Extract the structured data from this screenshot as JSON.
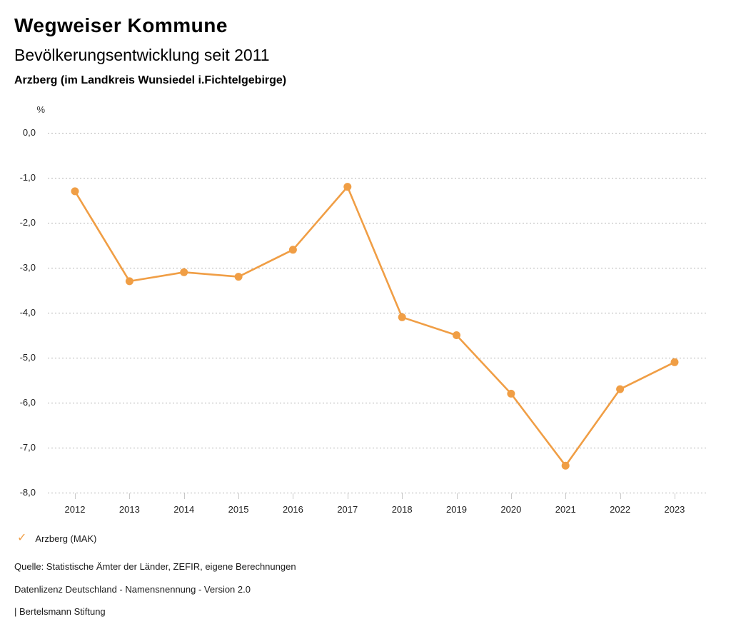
{
  "header": {
    "title": "Wegweiser Kommune",
    "subtitle": "Bevölkerungsentwicklung seit 2011",
    "region": "Arzberg (im Landkreis Wunsiedel i.Fichtelgebirge)"
  },
  "legend": {
    "checkmark_icon": "✓",
    "label": "Arzberg (MAK)"
  },
  "footer": {
    "source": "Quelle: Statistische Ämter der Länder, ZEFIR, eigene Berechnungen",
    "license": "Datenlizenz Deutschland - Namensnennung - Version 2.0",
    "attribution": "| Bertelsmann Stiftung"
  },
  "colors": {
    "series_orange": "#F09E45",
    "gridline_gray": "#b3b3b3",
    "tick_gray": "#c9c9c9"
  },
  "chart_data": {
    "type": "line",
    "title": "Wegweiser Kommune",
    "subtitle": "Bevölkerungsentwicklung seit 2011",
    "annotation": "Arzberg (im Landkreis Wunsiedel i.Fichtelgebirge)",
    "ylabel": "%",
    "xlabel": "",
    "categories": [
      "2012",
      "2013",
      "2014",
      "2015",
      "2016",
      "2017",
      "2018",
      "2019",
      "2020",
      "2021",
      "2022",
      "2023"
    ],
    "series": [
      {
        "name": "Arzberg (MAK)",
        "color": "#F09E45",
        "values": [
          -1.3,
          -3.3,
          -3.1,
          -3.2,
          -2.6,
          -1.2,
          -4.1,
          -4.5,
          -5.8,
          -7.4,
          -5.7,
          -5.1
        ]
      }
    ],
    "ylim": [
      -8.0,
      0.0
    ],
    "ytick_step": 1.0,
    "ytick_labels": [
      "0,0",
      "-1,0",
      "-2,0",
      "-3,0",
      "-4,0",
      "-5,0",
      "-6,0",
      "-7,0",
      "-8,0"
    ],
    "grid": "horizontal-dotted",
    "legend_position": "bottom-left"
  }
}
